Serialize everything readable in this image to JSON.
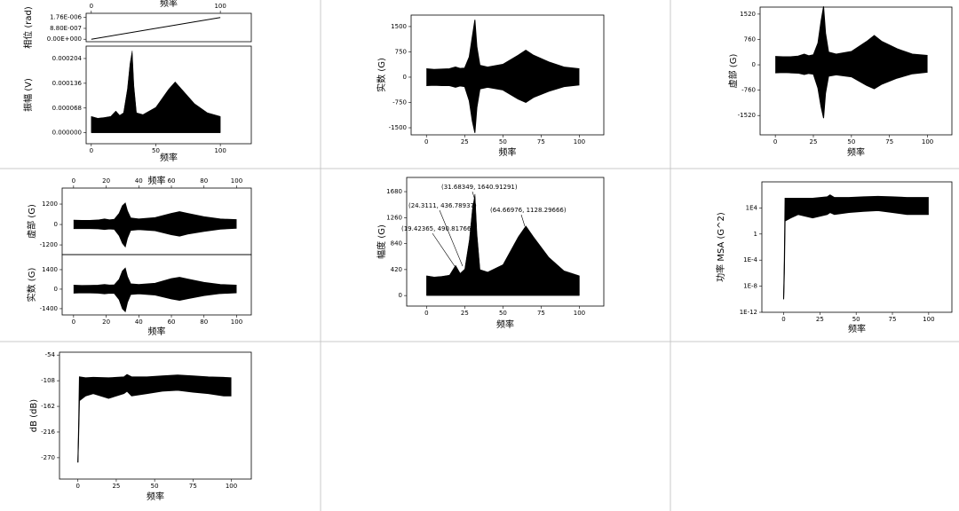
{
  "chart_data": [
    {
      "type": "line",
      "x_label": "频率",
      "y_label": "相位 (rad)",
      "xaxis": "top",
      "x": [
        0,
        100
      ],
      "series": [
        {
          "color": "#000000",
          "values": [
            0,
            1.76e-06
          ]
        }
      ],
      "xlim": [
        -4,
        124
      ],
      "ylim": [
        -2e-07,
        2.1e-06
      ],
      "xticks": [
        0,
        100
      ],
      "yticks": [
        {
          "value": 0,
          "label": "0.00E+000"
        },
        {
          "value": 8.8e-07,
          "label": "8.80E-007"
        },
        {
          "value": 1.76e-06,
          "label": "1.76E-006"
        }
      ]
    },
    {
      "type": "area",
      "x_label": "频率",
      "y_label": "振幅 (V)",
      "x": [
        0,
        5,
        10,
        15,
        19,
        22,
        25,
        28,
        30,
        31.7,
        33,
        35,
        40,
        50,
        60,
        65,
        70,
        80,
        90,
        100
      ],
      "series": [
        {
          "color": "#000000",
          "values": [
            4.5e-05,
            4e-05,
            4.2e-05,
            4.5e-05,
            6e-05,
            4.8e-05,
            5.5e-05,
            0.00012,
            0.00019,
            0.000225,
            0.00013,
            5.5e-05,
            5e-05,
            7e-05,
            0.00012,
            0.00014,
            0.00012,
            8e-05,
            5.5e-05,
            4.5e-05
          ]
        }
      ],
      "xlim": [
        -4,
        124
      ],
      "ylim": [
        -3e-05,
        0.000238
      ],
      "xticks": [
        0,
        50,
        100
      ],
      "yticks": [
        {
          "value": 0,
          "label": "0.000000"
        },
        {
          "value": 6.8e-05,
          "label": "0.000068"
        },
        {
          "value": 0.000136,
          "label": "0.000136"
        },
        {
          "value": 0.000204,
          "label": "0.000204"
        }
      ]
    },
    {
      "type": "band",
      "x_label": "频率",
      "y_label": "实数 (G)",
      "x": [
        0,
        5,
        10,
        15,
        19,
        22,
        25,
        28,
        30,
        31.7,
        33,
        35,
        40,
        50,
        60,
        65,
        70,
        80,
        90,
        100
      ],
      "series": [
        {
          "color": "#000000",
          "values": [
            250,
            230,
            240,
            250,
            300,
            260,
            270,
            600,
            1200,
            1700,
            900,
            350,
            300,
            380,
            650,
            800,
            650,
            450,
            300,
            250
          ]
        },
        {
          "color": "#000000",
          "values": [
            -250,
            -240,
            -250,
            -250,
            -300,
            -260,
            -280,
            -700,
            -1300,
            -1650,
            -900,
            -350,
            -300,
            -380,
            -650,
            -750,
            -600,
            -420,
            -280,
            -230
          ]
        }
      ],
      "xlim": [
        -10,
        116
      ],
      "ylim": [
        -1710,
        1840
      ],
      "xticks": [
        0,
        25,
        50,
        75,
        100
      ],
      "yticks": [
        -1500,
        -750,
        0,
        750,
        1500
      ]
    },
    {
      "type": "band",
      "x_label": "频率",
      "y_label": "虚部 (G)",
      "x": [
        0,
        5,
        10,
        15,
        19,
        22,
        25,
        28,
        30,
        31.7,
        33,
        35,
        40,
        50,
        60,
        65,
        70,
        80,
        90,
        100
      ],
      "series": [
        {
          "color": "#000000",
          "values": [
            250,
            240,
            240,
            260,
            320,
            270,
            300,
            650,
            1300,
            1750,
            950,
            380,
            320,
            400,
            700,
            880,
            700,
            480,
            320,
            280
          ]
        },
        {
          "color": "#000000",
          "values": [
            -240,
            -230,
            -240,
            -250,
            -290,
            -260,
            -280,
            -700,
            -1250,
            -1600,
            -850,
            -340,
            -300,
            -360,
            -620,
            -720,
            -580,
            -400,
            -270,
            -220
          ]
        }
      ],
      "xlim": [
        -10,
        116
      ],
      "ylim": [
        -2100,
        1730
      ],
      "xticks": [
        0,
        25,
        50,
        75,
        100
      ],
      "yticks": [
        -1520,
        -760,
        0,
        760,
        1520
      ]
    },
    {
      "type": "band",
      "x_label": "频率",
      "y_label": "虚部 (G)",
      "xaxis": "top",
      "x": [
        0,
        5,
        10,
        15,
        19,
        22,
        25,
        28,
        30,
        31.7,
        33,
        35,
        40,
        50,
        60,
        65,
        70,
        80,
        90,
        100
      ],
      "series": [
        {
          "color": "#000000",
          "values": [
            250,
            240,
            240,
            260,
            320,
            270,
            300,
            650,
            1100,
            1250,
            800,
            380,
            320,
            400,
            650,
            750,
            650,
            450,
            320,
            280
          ]
        },
        {
          "color": "#000000",
          "values": [
            -240,
            -230,
            -240,
            -250,
            -290,
            -260,
            -280,
            -650,
            -1100,
            -1300,
            -800,
            -340,
            -300,
            -360,
            -600,
            -680,
            -560,
            -400,
            -270,
            -220
          ]
        }
      ],
      "xlim": [
        -7,
        109
      ],
      "ylim": [
        -1770,
        2140
      ],
      "xticks": [
        0,
        20,
        40,
        60,
        80,
        100
      ],
      "yticks": [
        -1200,
        0,
        1200
      ]
    },
    {
      "type": "band",
      "x_label": "频率",
      "y_label": "实数 (G)",
      "x": [
        0,
        5,
        10,
        15,
        19,
        22,
        25,
        28,
        30,
        31.7,
        33,
        35,
        40,
        50,
        60,
        65,
        70,
        80,
        90,
        100
      ],
      "series": [
        {
          "color": "#000000",
          "values": [
            280,
            260,
            270,
            280,
            330,
            290,
            300,
            700,
            1300,
            1500,
            900,
            380,
            330,
            420,
            750,
            850,
            720,
            480,
            330,
            280
          ]
        },
        {
          "color": "#000000",
          "values": [
            -280,
            -260,
            -270,
            -280,
            -330,
            -290,
            -300,
            -750,
            -1400,
            -1600,
            -950,
            -380,
            -330,
            -420,
            -700,
            -800,
            -680,
            -460,
            -310,
            -260
          ]
        }
      ],
      "xlim": [
        -7,
        109
      ],
      "ylim": [
        -1850,
        2480
      ],
      "xticks": [
        0,
        20,
        40,
        60,
        80,
        100
      ],
      "yticks": [
        -1400,
        0,
        1400
      ]
    },
    {
      "type": "area",
      "x_label": "频率",
      "y_label": "幅度 (G)",
      "x": [
        0,
        5,
        10,
        15,
        19,
        22,
        25,
        28,
        30,
        31.7,
        33,
        35,
        40,
        50,
        60,
        65,
        70,
        80,
        90,
        100
      ],
      "series": [
        {
          "color": "#000000",
          "values": [
            320,
            300,
            310,
            330,
            490,
            360,
            430,
            900,
            1400,
            1640,
            1000,
            420,
            380,
            500,
            950,
            1128,
            950,
            620,
            400,
            320
          ]
        }
      ],
      "annotations": [
        "(31.68349, 1640.91291)",
        "(24.3111, 436.78937)",
        "(19.42365, 490.81766)",
        "(64.66976, 1128.29666)"
      ],
      "xlim": [
        -13,
        116
      ],
      "ylim": [
        -170,
        1910
      ],
      "xticks": [
        0,
        25,
        50,
        75,
        100
      ],
      "yticks": [
        0,
        420,
        840,
        1260,
        1680
      ]
    },
    {
      "type": "band",
      "x_label": "频率",
      "y_label": "功率 MSA (G^2)",
      "log_scale": true,
      "x": [
        0,
        0.5,
        1,
        5,
        10,
        20,
        30,
        32,
        35,
        45,
        55,
        65,
        75,
        85,
        95,
        100
      ],
      "series": [
        {
          "color": "#000000",
          "values": [
            1e-10,
            0.0001,
            300000,
            300000,
            300000,
            300000,
            500000,
            1000000,
            400000,
            400000,
            500000,
            600000,
            500000,
            400000,
            400000,
            400000
          ]
        },
        {
          "color": "#000000",
          "values": [
            1e-10,
            1e-06,
            100,
            300,
            1000,
            300,
            1000,
            2000,
            1000,
            2000,
            3000,
            4000,
            2000,
            1000,
            1000,
            1000
          ]
        }
      ],
      "xlim": [
        -15,
        116
      ],
      "ylim": [
        1e-12,
        100000000
      ],
      "xticks": [
        0,
        25,
        50,
        75,
        100
      ],
      "yticks": [
        {
          "value": 1e-12,
          "label": "1E-12"
        },
        {
          "value": 1e-08,
          "label": "1E-8"
        },
        {
          "value": 0.0001,
          "label": "1E-4"
        },
        1,
        {
          "value": 10000,
          "label": "1E4"
        }
      ]
    },
    {
      "type": "band",
      "x_label": "频率",
      "y_label": "dB (dB)",
      "x": [
        0,
        0.5,
        1,
        5,
        10,
        20,
        30,
        32,
        35,
        45,
        55,
        65,
        75,
        85,
        95,
        100
      ],
      "series": [
        {
          "color": "#000000",
          "values": [
            -280,
            -200,
            -100,
            -102,
            -101,
            -102,
            -100,
            -95,
            -100,
            -100,
            -98,
            -96,
            -98,
            -100,
            -101,
            -102
          ]
        },
        {
          "color": "#000000",
          "values": [
            -280,
            -220,
            -150,
            -140,
            -135,
            -145,
            -135,
            -130,
            -140,
            -135,
            -130,
            -128,
            -132,
            -135,
            -140,
            -140
          ]
        }
      ],
      "xlim": [
        -12,
        113
      ],
      "ylim": [
        -315,
        -48
      ],
      "xticks": [
        0,
        25,
        50,
        75,
        100
      ],
      "yticks": [
        -270,
        -216,
        -162,
        -108,
        -54
      ]
    }
  ]
}
